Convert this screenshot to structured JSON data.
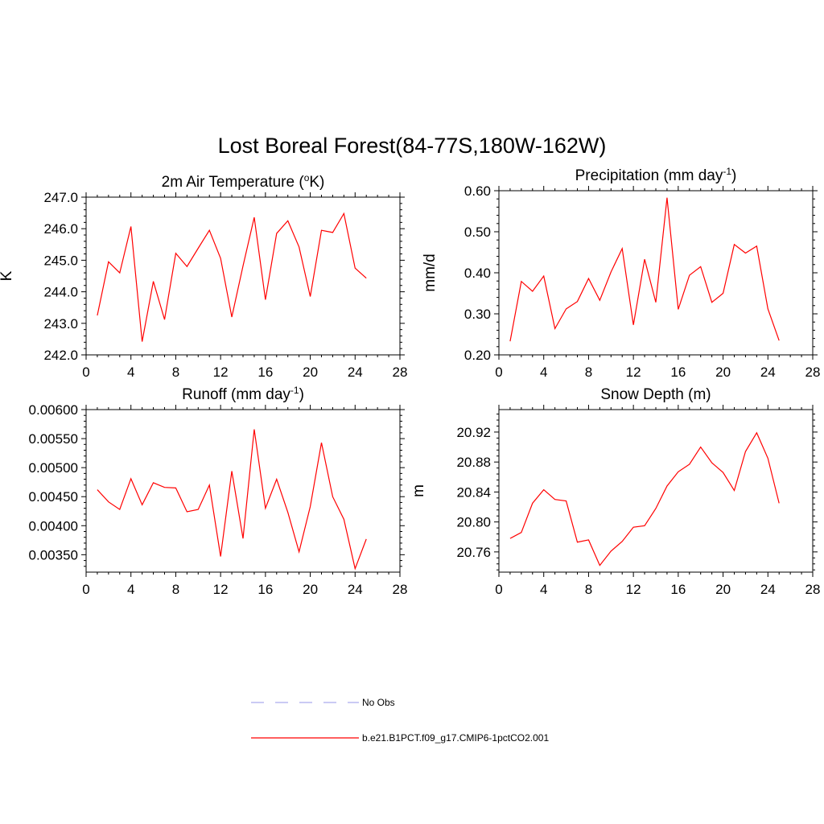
{
  "figure": {
    "title": "Lost Boreal Forest(84-77S,180W-162W)"
  },
  "legend": {
    "items": [
      {
        "label": "No Obs",
        "style": "dashed",
        "color": "#aaaaee"
      },
      {
        "label": "b.e21.B1PCT.f09_g17.CMIP6-1pctCO2.001",
        "style": "solid",
        "color": "#ff0000"
      }
    ]
  },
  "chart_data": [
    {
      "type": "line",
      "title": "2m Air Temperature (°K)",
      "title_main": "2m Air Temperature (",
      "title_sup": "o",
      "title_tail": "K)",
      "ylabel": "K",
      "xlim": [
        0,
        28
      ],
      "ylim": [
        242.0,
        247.0
      ],
      "xticks": [
        "0",
        "4",
        "8",
        "12",
        "16",
        "20",
        "24",
        "28"
      ],
      "yticks": [
        "242.0",
        "243.0",
        "244.0",
        "245.0",
        "246.0",
        "247.0"
      ],
      "color": "#ff0000",
      "x": [
        1,
        2,
        3,
        4,
        5,
        6,
        7,
        8,
        9,
        10,
        11,
        12,
        13,
        14,
        15,
        16,
        17,
        18,
        19,
        20,
        21,
        22,
        23,
        24,
        25
      ],
      "y": [
        243.25,
        244.95,
        244.6,
        246.07,
        242.42,
        244.33,
        243.12,
        245.22,
        244.8,
        245.38,
        245.95,
        245.06,
        243.2,
        244.82,
        246.36,
        243.75,
        245.85,
        246.25,
        245.42,
        243.85,
        245.95,
        245.88,
        246.48,
        244.75,
        244.43
      ]
    },
    {
      "type": "line",
      "title": "Precipitation (mm day-1)",
      "title_main": "Precipitation (mm day",
      "title_sup": "-1",
      "title_tail": ")",
      "ylabel": "mm/d",
      "xlim": [
        0,
        28
      ],
      "ylim": [
        0.2,
        0.6
      ],
      "xticks": [
        "0",
        "4",
        "8",
        "12",
        "16",
        "20",
        "24",
        "28"
      ],
      "yticks": [
        "0.20",
        "0.30",
        "0.40",
        "0.50",
        "0.60"
      ],
      "color": "#ff0000",
      "x": [
        1,
        2,
        3,
        4,
        5,
        6,
        7,
        8,
        9,
        10,
        11,
        12,
        13,
        14,
        15,
        16,
        17,
        18,
        19,
        20,
        21,
        22,
        23,
        24,
        25
      ],
      "y": [
        0.233,
        0.379,
        0.355,
        0.392,
        0.264,
        0.312,
        0.33,
        0.386,
        0.333,
        0.402,
        0.459,
        0.273,
        0.433,
        0.328,
        0.583,
        0.311,
        0.394,
        0.415,
        0.328,
        0.35,
        0.469,
        0.448,
        0.465,
        0.312,
        0.235
      ]
    },
    {
      "type": "line",
      "title": "Runoff (mm day-1)",
      "title_main": "Runoff (mm day",
      "title_sup": "-1",
      "title_tail": ")",
      "ylabel": "",
      "xlim": [
        0,
        28
      ],
      "ylim": [
        0.0032,
        0.006
      ],
      "xticks": [
        "0",
        "4",
        "8",
        "12",
        "16",
        "20",
        "24",
        "28"
      ],
      "yticks": [
        "0.00350",
        "0.00400",
        "0.00450",
        "0.00500",
        "0.00550",
        "0.00600"
      ],
      "color": "#ff0000",
      "x": [
        1,
        2,
        3,
        4,
        5,
        6,
        7,
        8,
        9,
        10,
        11,
        12,
        13,
        14,
        15,
        16,
        17,
        18,
        19,
        20,
        21,
        22,
        23,
        24,
        25
      ],
      "y": [
        0.00462,
        0.00441,
        0.00428,
        0.00481,
        0.00436,
        0.00474,
        0.00466,
        0.00465,
        0.00424,
        0.00428,
        0.0047,
        0.00347,
        0.00494,
        0.00378,
        0.00566,
        0.0043,
        0.0048,
        0.00423,
        0.00355,
        0.00433,
        0.00543,
        0.0045,
        0.00411,
        0.00326,
        0.00377
      ]
    },
    {
      "type": "line",
      "title": "Snow Depth (m)",
      "title_main": "Snow Depth (m)",
      "title_sup": "",
      "title_tail": "",
      "ylabel": "m",
      "xlim": [
        0,
        28
      ],
      "ylim": [
        20.733,
        20.95
      ],
      "xticks": [
        "0",
        "4",
        "8",
        "12",
        "16",
        "20",
        "24",
        "28"
      ],
      "yticks": [
        "20.76",
        "20.80",
        "20.84",
        "20.88",
        "20.92"
      ],
      "color": "#ff0000",
      "x": [
        1,
        2,
        3,
        4,
        5,
        6,
        7,
        8,
        9,
        10,
        11,
        12,
        13,
        14,
        15,
        16,
        17,
        18,
        19,
        20,
        21,
        22,
        23,
        24,
        25
      ],
      "y": [
        20.778,
        20.786,
        20.825,
        20.843,
        20.83,
        20.828,
        20.773,
        20.776,
        20.742,
        20.761,
        20.774,
        20.793,
        20.795,
        20.818,
        20.848,
        20.867,
        20.877,
        20.9,
        20.879,
        20.866,
        20.842,
        20.894,
        20.919,
        20.885,
        20.825
      ]
    }
  ]
}
